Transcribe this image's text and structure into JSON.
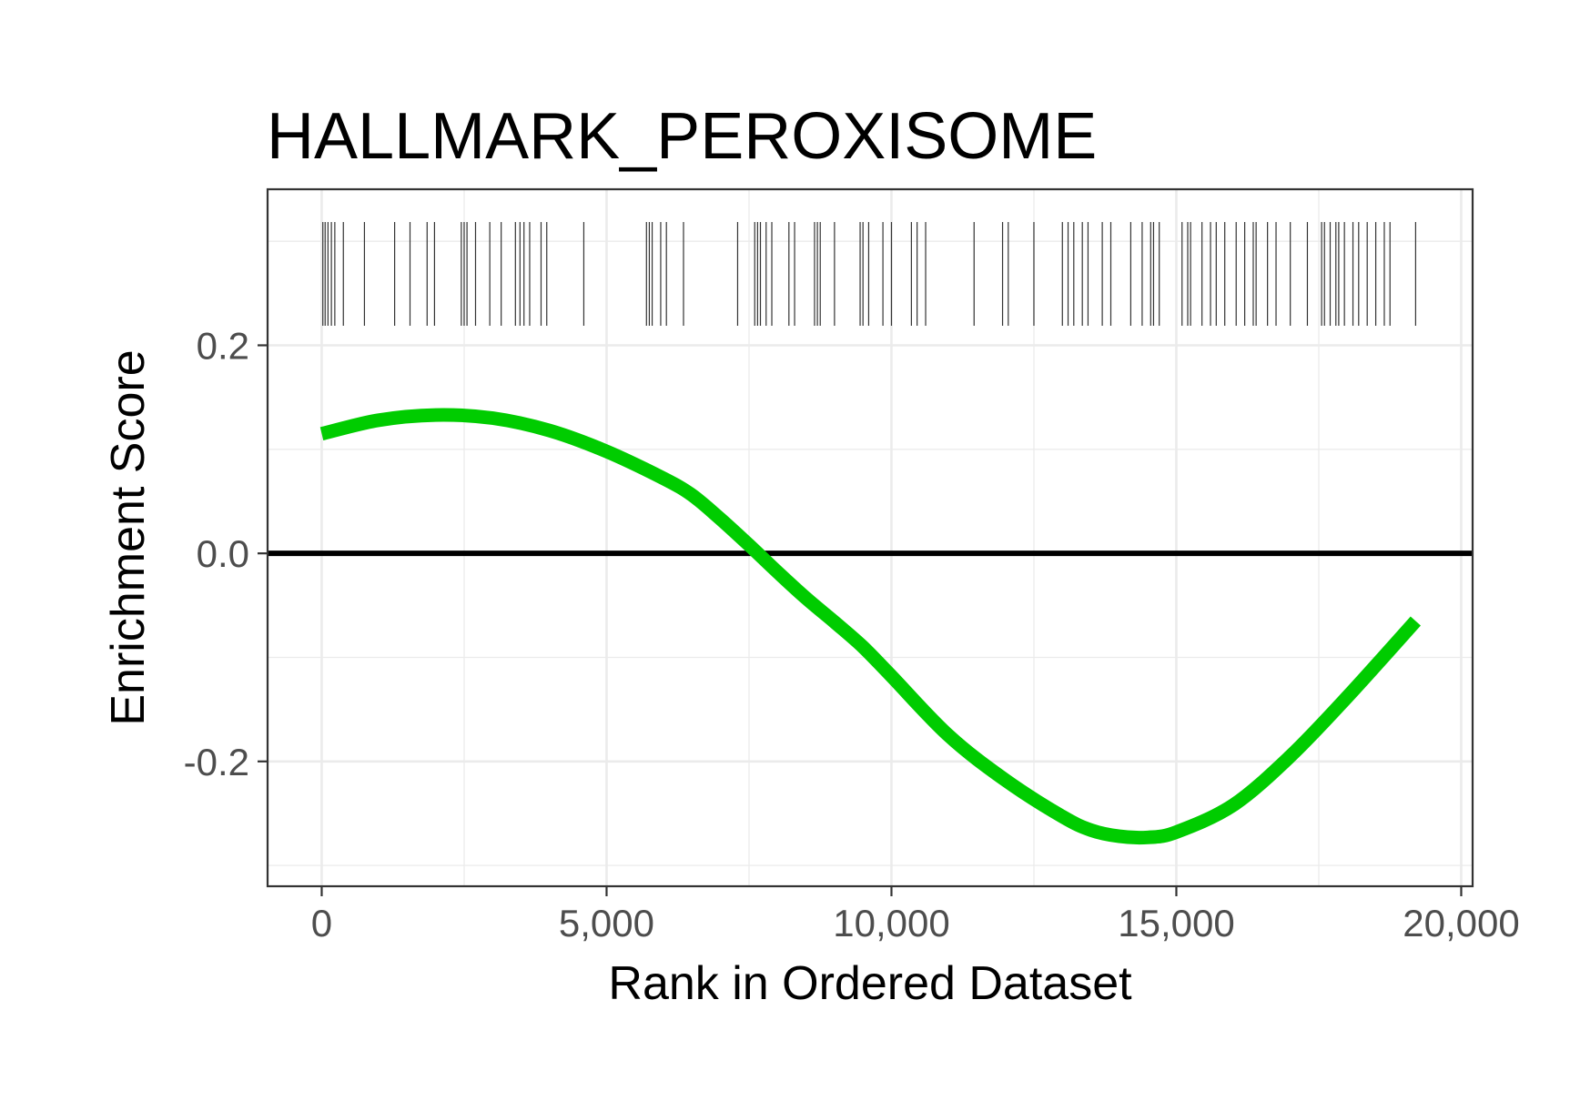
{
  "chart_data": {
    "type": "line",
    "title": "HALLMARK_PEROXISOME",
    "xlabel": "Rank in Ordered Dataset",
    "ylabel": "Enrichment Score",
    "xlim": [
      -950,
      20200
    ],
    "ylim": [
      -0.32,
      0.35
    ],
    "x_ticks": [
      0,
      5000,
      10000,
      15000,
      20000
    ],
    "x_tick_labels": [
      "0",
      "5,000",
      "10,000",
      "15,000",
      "20,000"
    ],
    "y_ticks": [
      -0.2,
      0.0,
      0.2
    ],
    "y_tick_labels": [
      "-0.2",
      "0.0",
      "0.2"
    ],
    "grid": true,
    "reference_line": {
      "y": 0,
      "color": "#000000"
    },
    "series": [
      {
        "color": "#00cc00",
        "x": [
          0,
          1000,
          2000,
          3000,
          4000,
          5000,
          6000,
          6500,
          7000,
          7500,
          8000,
          8500,
          9000,
          9500,
          10000,
          11000,
          12000,
          13000,
          13500,
          14000,
          14500,
          15000,
          16000,
          17000,
          18000,
          19200
        ],
        "y": [
          0.115,
          0.128,
          0.133,
          0.13,
          0.118,
          0.098,
          0.072,
          0.056,
          0.033,
          0.008,
          -0.018,
          -0.043,
          -0.066,
          -0.09,
          -0.118,
          -0.175,
          -0.218,
          -0.253,
          -0.266,
          -0.272,
          -0.273,
          -0.268,
          -0.242,
          -0.195,
          -0.138,
          -0.065
        ]
      }
    ],
    "hits": [
      20,
      60,
      110,
      170,
      230,
      380,
      750,
      1280,
      1550,
      1850,
      1980,
      2450,
      2500,
      2550,
      2700,
      2950,
      3150,
      3400,
      3480,
      3550,
      3650,
      3850,
      3950,
      4600,
      5700,
      5750,
      5800,
      5950,
      6050,
      6350,
      7300,
      7600,
      7650,
      7700,
      7800,
      7900,
      8200,
      8300,
      8650,
      8700,
      8750,
      9000,
      9450,
      9500,
      9600,
      9850,
      10000,
      10350,
      10450,
      10600,
      11450,
      11950,
      12050,
      12500,
      13000,
      13100,
      13200,
      13350,
      13450,
      13700,
      13850,
      14200,
      14400,
      14550,
      14600,
      14700,
      15100,
      15200,
      15250,
      15450,
      15600,
      15700,
      15850,
      16050,
      16200,
      16350,
      16400,
      16600,
      16750,
      17000,
      17300,
      17550,
      17600,
      17700,
      17800,
      17850,
      17950,
      18100,
      18200,
      18350,
      18500,
      18650,
      18750,
      19200
    ]
  }
}
